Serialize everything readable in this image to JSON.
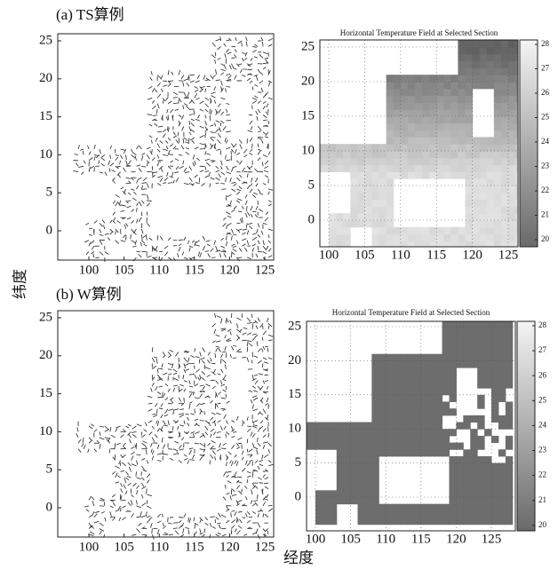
{
  "figure": {
    "y_axis_label": "纬度",
    "x_axis_label": "经度",
    "panels": [
      {
        "label": "(a) TS算例",
        "vector_plot": {
          "xticks": [
            100,
            105,
            110,
            115,
            120,
            125
          ],
          "yticks": [
            0,
            5,
            10,
            15,
            20,
            25
          ]
        },
        "field_plot": {
          "title": "Horizontal Temperature Field at Selected Section",
          "xticks": [
            100,
            105,
            110,
            115,
            120,
            125
          ],
          "yticks": [
            0,
            5,
            10,
            15,
            20,
            25
          ],
          "colorbar_ticks": [
            28,
            27,
            26,
            25,
            24,
            23,
            22,
            21,
            20
          ]
        }
      },
      {
        "label": "(b) W算例",
        "vector_plot": {
          "xticks": [
            100,
            105,
            110,
            115,
            120,
            125
          ],
          "yticks": [
            0,
            5,
            10,
            15,
            20,
            25
          ]
        },
        "field_plot": {
          "title": "Horizontal Temperature Field at Selected Section",
          "xticks": [
            100,
            105,
            110,
            115,
            120,
            125
          ],
          "yticks": [
            0,
            5,
            10,
            15,
            20,
            25
          ],
          "colorbar_ticks": [
            28,
            27,
            26,
            25,
            24,
            23,
            22,
            21,
            20
          ]
        }
      }
    ]
  }
}
